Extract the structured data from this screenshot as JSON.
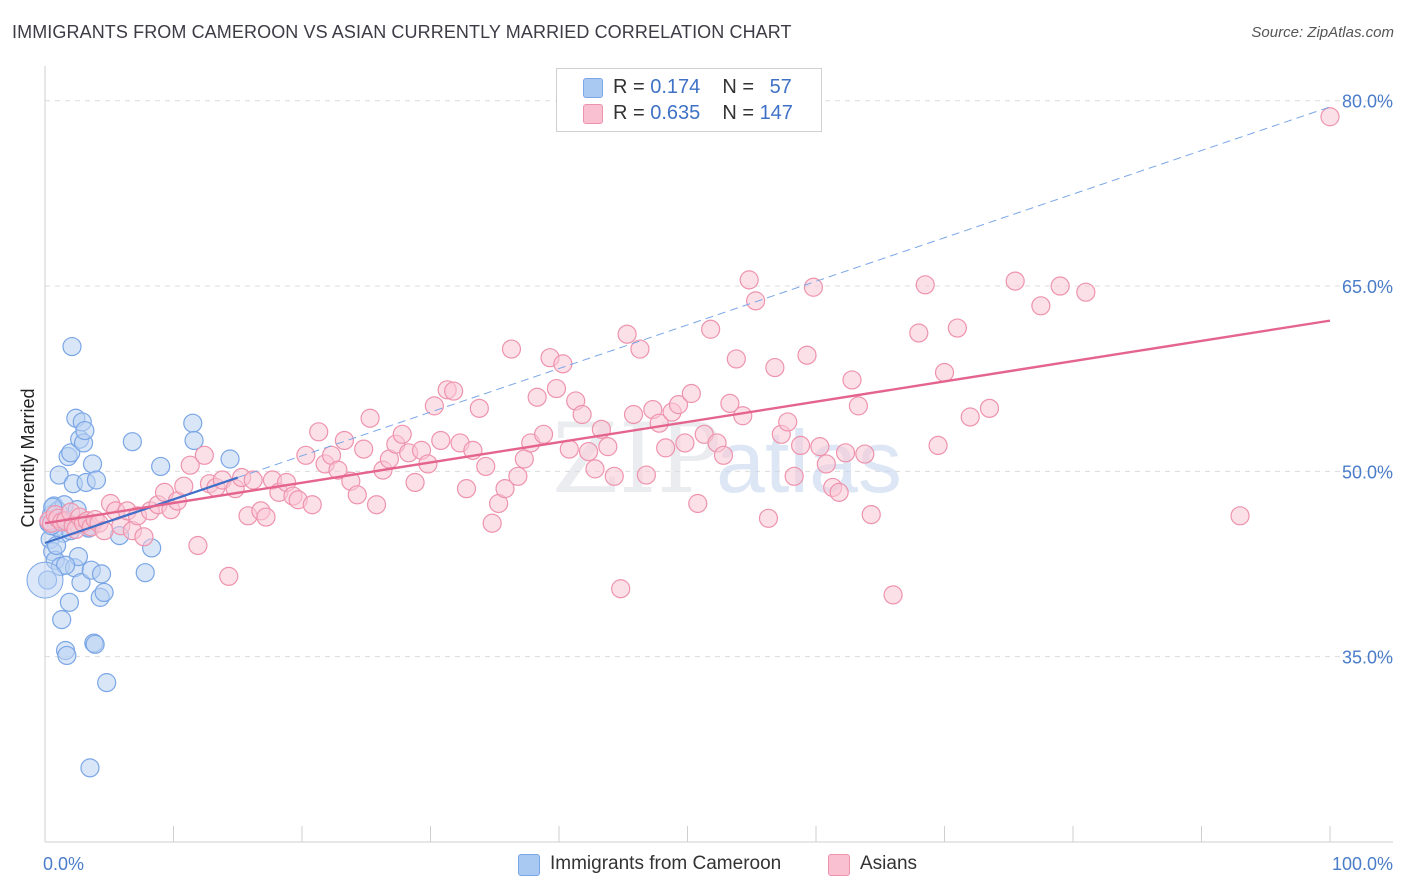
{
  "title": "IMMIGRANTS FROM CAMEROON VS ASIAN CURRENTLY MARRIED CORRELATION CHART",
  "source_prefix": "Source: ",
  "source_name": "ZipAtlas.com",
  "watermark": {
    "zip": "ZIP",
    "atlas": "atlas"
  },
  "legend": {
    "rows": [
      {
        "r_label": "R = ",
        "r_value": "0.174",
        "n_label": "N = ",
        "n_value": "57",
        "color": "#a9c8f2",
        "border": "#7aa6e6"
      },
      {
        "r_label": "R = ",
        "r_value": "0.635",
        "n_label": "N = ",
        "n_value": "147",
        "color": "#f8c0d0",
        "border": "#ee93ad"
      }
    ]
  },
  "bottom_legend": [
    {
      "label": "Immigrants from Cameroon",
      "color": "#a9c8f2",
      "border": "#7aa6e6"
    },
    {
      "label": "Asians",
      "color": "#f8c0d0",
      "border": "#ee93ad"
    }
  ],
  "chart_data": {
    "type": "scatter",
    "xlabel": "",
    "ylabel": "Currently Married",
    "xlim": [
      0,
      100
    ],
    "ylim": [
      20,
      82
    ],
    "x_tick_labels": [
      "0.0%",
      "100.0%"
    ],
    "y_ticks": [
      35,
      50,
      65,
      80
    ],
    "y_tick_labels": [
      "35.0%",
      "50.0%",
      "65.0%",
      "80.0%"
    ],
    "grid": true,
    "series": [
      {
        "name": "Immigrants from Cameroon",
        "color": "#7aa6e6",
        "fill": "#b9d2f3",
        "trend": {
          "x": [
            0,
            15
          ],
          "y": [
            44.2,
            49.5
          ],
          "extended_x": [
            15,
            100
          ],
          "extended_y": [
            49.5,
            79.5
          ],
          "color": "#3f6fc9"
        },
        "points": [
          [
            0.2,
            41.2
          ],
          [
            0.3,
            45.8
          ],
          [
            0.4,
            44.5
          ],
          [
            0.5,
            46.5
          ],
          [
            0.6,
            43.5
          ],
          [
            0.7,
            47.2
          ],
          [
            0.8,
            42.8
          ],
          [
            0.9,
            45.5
          ],
          [
            1.0,
            46.8
          ],
          [
            1.1,
            49.7
          ],
          [
            1.2,
            42.3
          ],
          [
            1.3,
            38.0
          ],
          [
            1.4,
            45.0
          ],
          [
            1.5,
            47.3
          ],
          [
            1.6,
            35.5
          ],
          [
            1.7,
            35.1
          ],
          [
            1.8,
            51.2
          ],
          [
            1.9,
            39.4
          ],
          [
            2.0,
            51.5
          ],
          [
            2.1,
            60.1
          ],
          [
            2.2,
            49.0
          ],
          [
            2.3,
            42.2
          ],
          [
            2.4,
            54.3
          ],
          [
            2.5,
            46.9
          ],
          [
            2.6,
            43.1
          ],
          [
            2.7,
            52.6
          ],
          [
            2.8,
            41.0
          ],
          [
            2.9,
            54.0
          ],
          [
            3.0,
            52.3
          ],
          [
            3.1,
            53.3
          ],
          [
            3.2,
            49.1
          ],
          [
            3.3,
            45.5
          ],
          [
            3.4,
            45.4
          ],
          [
            3.5,
            26.0
          ],
          [
            3.6,
            42.0
          ],
          [
            3.7,
            50.6
          ],
          [
            3.8,
            36.1
          ],
          [
            3.9,
            36.0
          ],
          [
            4.0,
            49.3
          ],
          [
            4.3,
            39.8
          ],
          [
            4.6,
            40.2
          ],
          [
            4.8,
            32.9
          ],
          [
            5.8,
            44.8
          ],
          [
            6.8,
            52.4
          ],
          [
            7.8,
            41.8
          ],
          [
            8.3,
            43.8
          ],
          [
            9.0,
            50.4
          ],
          [
            11.5,
            53.9
          ],
          [
            11.6,
            52.5
          ],
          [
            14.4,
            51.0
          ],
          [
            0.5,
            45.6
          ],
          [
            0.9,
            44.0
          ],
          [
            1.3,
            46.0
          ],
          [
            2.0,
            45.2
          ],
          [
            0.6,
            47.1
          ],
          [
            1.6,
            42.4
          ],
          [
            4.4,
            41.7
          ]
        ]
      },
      {
        "name": "Asians",
        "color": "#ee93ad",
        "fill": "#f9c7d5",
        "trend": {
          "x": [
            0,
            100
          ],
          "y": [
            45.8,
            62.2
          ],
          "color": "#e4648e"
        },
        "points": [
          [
            0.3,
            46.0
          ],
          [
            0.5,
            45.8
          ],
          [
            0.8,
            46.5
          ],
          [
            1.0,
            46.2
          ],
          [
            1.3,
            45.9
          ],
          [
            1.6,
            46.0
          ],
          [
            2.0,
            46.7
          ],
          [
            2.2,
            45.6
          ],
          [
            2.4,
            45.3
          ],
          [
            2.7,
            46.3
          ],
          [
            3.0,
            45.8
          ],
          [
            3.3,
            46.0
          ],
          [
            3.6,
            45.5
          ],
          [
            3.9,
            46.1
          ],
          [
            4.2,
            45.8
          ],
          [
            4.6,
            45.2
          ],
          [
            5.1,
            47.4
          ],
          [
            5.5,
            46.8
          ],
          [
            5.9,
            45.6
          ],
          [
            6.4,
            46.8
          ],
          [
            6.8,
            45.2
          ],
          [
            7.2,
            46.4
          ],
          [
            7.7,
            44.7
          ],
          [
            8.2,
            46.8
          ],
          [
            8.8,
            47.3
          ],
          [
            9.3,
            48.3
          ],
          [
            9.8,
            46.9
          ],
          [
            10.3,
            47.6
          ],
          [
            10.8,
            48.8
          ],
          [
            11.3,
            50.5
          ],
          [
            11.9,
            44.0
          ],
          [
            12.4,
            51.3
          ],
          [
            12.8,
            49.0
          ],
          [
            13.3,
            48.7
          ],
          [
            13.8,
            49.3
          ],
          [
            14.3,
            41.5
          ],
          [
            14.8,
            48.6
          ],
          [
            15.3,
            49.5
          ],
          [
            15.8,
            46.4
          ],
          [
            16.2,
            49.3
          ],
          [
            16.8,
            46.8
          ],
          [
            17.2,
            46.3
          ],
          [
            17.7,
            49.3
          ],
          [
            18.2,
            48.3
          ],
          [
            18.8,
            49.1
          ],
          [
            19.3,
            48.0
          ],
          [
            19.7,
            47.7
          ],
          [
            20.3,
            51.3
          ],
          [
            20.8,
            47.3
          ],
          [
            21.3,
            53.2
          ],
          [
            21.8,
            50.6
          ],
          [
            22.3,
            51.3
          ],
          [
            22.8,
            50.1
          ],
          [
            23.3,
            52.5
          ],
          [
            23.8,
            49.2
          ],
          [
            24.3,
            48.1
          ],
          [
            24.8,
            51.8
          ],
          [
            25.3,
            54.3
          ],
          [
            25.8,
            47.3
          ],
          [
            26.3,
            50.1
          ],
          [
            26.8,
            51.0
          ],
          [
            27.3,
            52.2
          ],
          [
            27.8,
            53.0
          ],
          [
            28.3,
            51.5
          ],
          [
            28.8,
            49.1
          ],
          [
            29.3,
            51.7
          ],
          [
            29.8,
            50.6
          ],
          [
            30.3,
            55.3
          ],
          [
            30.8,
            52.5
          ],
          [
            31.3,
            56.6
          ],
          [
            31.8,
            56.5
          ],
          [
            32.3,
            52.3
          ],
          [
            32.8,
            48.6
          ],
          [
            33.3,
            51.7
          ],
          [
            33.8,
            55.1
          ],
          [
            34.3,
            50.4
          ],
          [
            34.8,
            45.8
          ],
          [
            35.3,
            47.4
          ],
          [
            35.8,
            48.6
          ],
          [
            36.3,
            59.9
          ],
          [
            36.8,
            49.6
          ],
          [
            37.3,
            51.0
          ],
          [
            37.8,
            52.3
          ],
          [
            38.3,
            56.0
          ],
          [
            38.8,
            53.0
          ],
          [
            39.3,
            59.2
          ],
          [
            39.8,
            56.7
          ],
          [
            40.3,
            58.7
          ],
          [
            40.8,
            51.8
          ],
          [
            41.3,
            55.7
          ],
          [
            41.8,
            54.6
          ],
          [
            42.3,
            51.6
          ],
          [
            42.8,
            50.2
          ],
          [
            43.3,
            53.4
          ],
          [
            43.8,
            52.0
          ],
          [
            44.3,
            49.6
          ],
          [
            44.8,
            40.5
          ],
          [
            45.3,
            61.1
          ],
          [
            45.8,
            54.6
          ],
          [
            46.3,
            59.9
          ],
          [
            46.8,
            49.7
          ],
          [
            47.3,
            55.0
          ],
          [
            47.8,
            53.9
          ],
          [
            48.3,
            51.9
          ],
          [
            48.8,
            54.8
          ],
          [
            49.3,
            55.4
          ],
          [
            49.8,
            52.3
          ],
          [
            50.3,
            56.3
          ],
          [
            50.8,
            47.4
          ],
          [
            51.3,
            53.0
          ],
          [
            51.8,
            61.5
          ],
          [
            52.3,
            52.3
          ],
          [
            52.8,
            51.3
          ],
          [
            53.3,
            55.5
          ],
          [
            53.8,
            59.1
          ],
          [
            54.3,
            54.5
          ],
          [
            54.8,
            65.5
          ],
          [
            55.3,
            63.8
          ],
          [
            56.3,
            46.2
          ],
          [
            56.8,
            58.4
          ],
          [
            57.3,
            53.0
          ],
          [
            57.8,
            54.0
          ],
          [
            58.3,
            49.6
          ],
          [
            58.8,
            52.1
          ],
          [
            59.3,
            59.4
          ],
          [
            59.8,
            64.9
          ],
          [
            60.3,
            52.0
          ],
          [
            60.8,
            50.6
          ],
          [
            61.3,
            48.7
          ],
          [
            61.8,
            48.3
          ],
          [
            62.3,
            51.5
          ],
          [
            62.8,
            57.4
          ],
          [
            63.3,
            55.3
          ],
          [
            63.8,
            51.4
          ],
          [
            64.3,
            46.5
          ],
          [
            66.0,
            40.0
          ],
          [
            68.0,
            61.2
          ],
          [
            68.5,
            65.1
          ],
          [
            69.5,
            52.1
          ],
          [
            70.0,
            58.0
          ],
          [
            71.0,
            61.6
          ],
          [
            72.0,
            54.4
          ],
          [
            73.5,
            55.1
          ],
          [
            75.5,
            65.4
          ],
          [
            77.5,
            63.4
          ],
          [
            79.0,
            65.0
          ],
          [
            81.0,
            64.5
          ],
          [
            93.0,
            46.4
          ],
          [
            100.0,
            78.7
          ]
        ]
      }
    ]
  }
}
